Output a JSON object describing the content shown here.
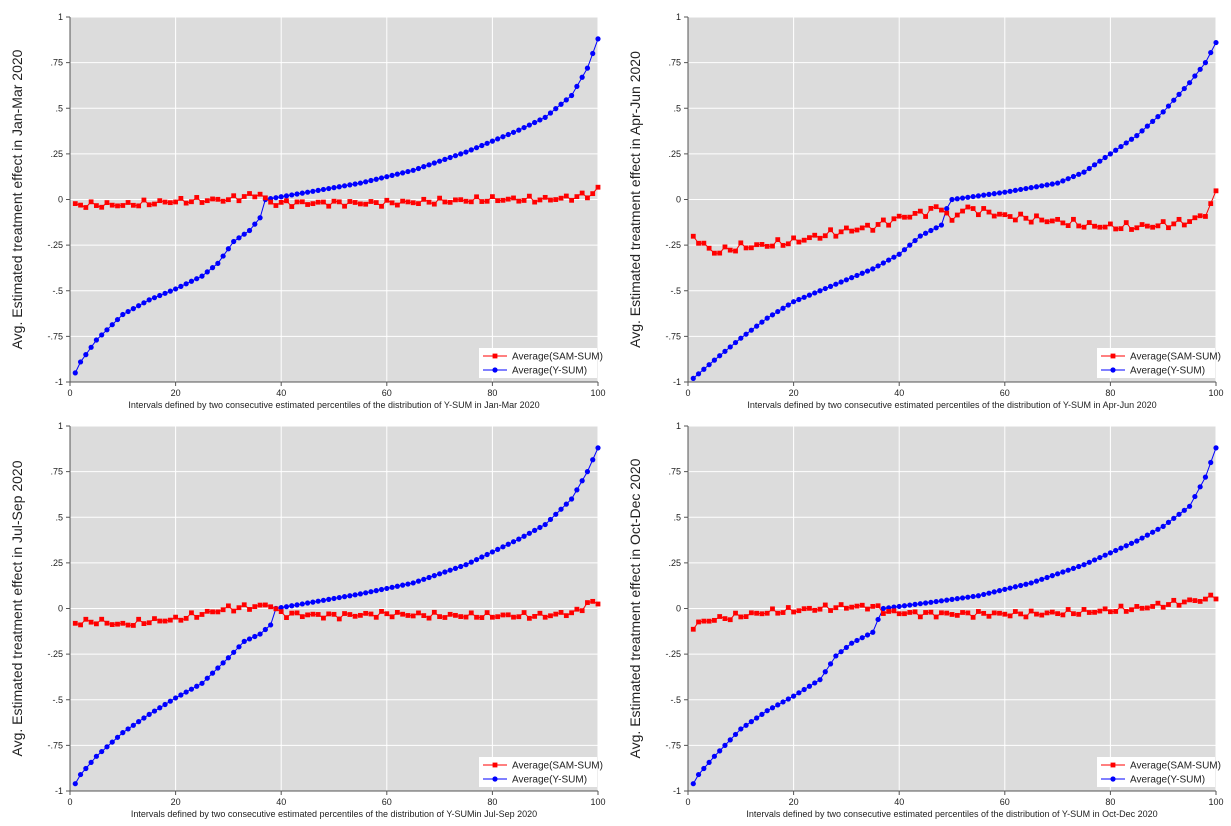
{
  "style": {
    "panel_bg": "#dcdcdc",
    "grid_color": "#ffffff",
    "sam_color": "#ff0000",
    "y_color": "#0000ff",
    "sam_marker": "square",
    "y_marker": "circle"
  },
  "chart_data": [
    {
      "type": "line",
      "ylabel": "Avg. Estimated treatment effect in Jan-Mar 2020",
      "xlabel": "Intervals defined by two consecutive estimated percentiles of the distribution of Y-SUM in Jan-Mar 2020",
      "xlim": [
        0,
        100
      ],
      "ylim": [
        -1,
        1
      ],
      "xticks": [
        "0",
        "20",
        "40",
        "60",
        "80",
        "100"
      ],
      "yticks": [
        "-1",
        "-.75",
        "-.5",
        "-.25",
        "0",
        ".25",
        ".5",
        ".75",
        "1"
      ],
      "grid": true,
      "legend_position": "bottom-right",
      "legend": [
        "Average(SAM-SUM)",
        "Average(Y-SUM)"
      ],
      "crossover": 37,
      "y_sum": {
        "neg_anchors": [
          [
            1,
            -0.95
          ],
          [
            2,
            -0.89
          ],
          [
            5,
            -0.77
          ],
          [
            10,
            -0.63
          ],
          [
            15,
            -0.55
          ],
          [
            20,
            -0.49
          ],
          [
            25,
            -0.42
          ],
          [
            28,
            -0.35
          ],
          [
            31,
            -0.23
          ],
          [
            34,
            -0.17
          ],
          [
            36,
            -0.1
          ]
        ],
        "pos_anchors": [
          [
            37,
            0.0
          ],
          [
            45,
            0.04
          ],
          [
            55,
            0.09
          ],
          [
            65,
            0.16
          ],
          [
            75,
            0.26
          ],
          [
            85,
            0.38
          ],
          [
            90,
            0.45
          ],
          [
            95,
            0.57
          ],
          [
            98,
            0.72
          ],
          [
            100,
            0.88
          ]
        ]
      },
      "sam_sum": {
        "anchors": [
          [
            1,
            -0.03
          ],
          [
            10,
            -0.03
          ],
          [
            20,
            -0.01
          ],
          [
            30,
            0.0
          ],
          [
            36,
            0.03
          ],
          [
            38,
            -0.02
          ],
          [
            50,
            -0.02
          ],
          [
            60,
            -0.02
          ],
          [
            70,
            -0.01
          ],
          [
            80,
            0.0
          ],
          [
            90,
            0.0
          ],
          [
            95,
            0.01
          ],
          [
            99,
            0.03
          ],
          [
            100,
            0.06
          ]
        ],
        "amp": 0.012
      }
    },
    {
      "type": "line",
      "ylabel": "Avg. Estimated treatment effect in Apr-Jun 2020",
      "xlabel": "Intervals defined by two consecutive estimated percentiles of the distribution of Y-SUM in Apr-Jun 2020",
      "xlim": [
        0,
        100
      ],
      "ylim": [
        -1,
        1
      ],
      "xticks": [
        "0",
        "20",
        "40",
        "60",
        "80",
        "100"
      ],
      "yticks": [
        "-1",
        "-.75",
        "-.5",
        "-.25",
        "0",
        ".25",
        ".5",
        ".75",
        "1"
      ],
      "grid": true,
      "legend_position": "bottom-right",
      "legend": [
        "Average(SAM-SUM)",
        "Average(Y-SUM)"
      ],
      "crossover": 50,
      "y_sum": {
        "neg_anchors": [
          [
            1,
            -0.98
          ],
          [
            5,
            -0.88
          ],
          [
            10,
            -0.76
          ],
          [
            15,
            -0.65
          ],
          [
            20,
            -0.56
          ],
          [
            25,
            -0.5
          ],
          [
            30,
            -0.44
          ],
          [
            35,
            -0.38
          ],
          [
            40,
            -0.3
          ],
          [
            44,
            -0.2
          ],
          [
            48,
            -0.14
          ],
          [
            49,
            -0.05
          ]
        ],
        "pos_anchors": [
          [
            50,
            0.0
          ],
          [
            60,
            0.04
          ],
          [
            70,
            0.09
          ],
          [
            75,
            0.15
          ],
          [
            80,
            0.25
          ],
          [
            85,
            0.35
          ],
          [
            90,
            0.48
          ],
          [
            95,
            0.64
          ],
          [
            98,
            0.75
          ],
          [
            100,
            0.86
          ]
        ]
      },
      "sam_sum": {
        "anchors": [
          [
            1,
            -0.2
          ],
          [
            3,
            -0.25
          ],
          [
            5,
            -0.29
          ],
          [
            10,
            -0.26
          ],
          [
            15,
            -0.25
          ],
          [
            20,
            -0.23
          ],
          [
            25,
            -0.2
          ],
          [
            30,
            -0.17
          ],
          [
            35,
            -0.15
          ],
          [
            40,
            -0.1
          ],
          [
            45,
            -0.07
          ],
          [
            48,
            -0.04
          ],
          [
            50,
            -0.12
          ],
          [
            52,
            -0.05
          ],
          [
            55,
            -0.06
          ],
          [
            60,
            -0.09
          ],
          [
            70,
            -0.12
          ],
          [
            75,
            -0.14
          ],
          [
            80,
            -0.15
          ],
          [
            85,
            -0.15
          ],
          [
            90,
            -0.14
          ],
          [
            95,
            -0.12
          ],
          [
            98,
            -0.08
          ],
          [
            100,
            0.03
          ]
        ],
        "amp": 0.015
      }
    },
    {
      "type": "line",
      "ylabel": "Avg. Estimated treatment effect in Jul-Sep 2020",
      "xlabel": "Intervals defined by two consecutive estimated percentiles of the distribution of Y-SUMin Jul-Sep 2020",
      "xlim": [
        0,
        100
      ],
      "ylim": [
        -1,
        1
      ],
      "xticks": [
        "0",
        "20",
        "40",
        "60",
        "80",
        "100"
      ],
      "yticks": [
        "-1",
        "-.75",
        "-.5",
        "-.25",
        "0",
        ".25",
        ".5",
        ".75",
        "1"
      ],
      "grid": true,
      "legend_position": "bottom-right",
      "legend": [
        "Average(SAM-SUM)",
        "Average(Y-SUM)"
      ],
      "crossover": 39,
      "y_sum": {
        "neg_anchors": [
          [
            1,
            -0.96
          ],
          [
            2,
            -0.91
          ],
          [
            5,
            -0.81
          ],
          [
            10,
            -0.68
          ],
          [
            15,
            -0.58
          ],
          [
            20,
            -0.49
          ],
          [
            25,
            -0.41
          ],
          [
            30,
            -0.27
          ],
          [
            33,
            -0.18
          ],
          [
            36,
            -0.14
          ],
          [
            38,
            -0.09
          ]
        ],
        "pos_anchors": [
          [
            39,
            0.0
          ],
          [
            45,
            0.03
          ],
          [
            55,
            0.08
          ],
          [
            65,
            0.14
          ],
          [
            75,
            0.24
          ],
          [
            85,
            0.38
          ],
          [
            90,
            0.46
          ],
          [
            95,
            0.6
          ],
          [
            98,
            0.75
          ],
          [
            100,
            0.88
          ]
        ]
      },
      "sam_sum": {
        "anchors": [
          [
            1,
            -0.08
          ],
          [
            5,
            -0.07
          ],
          [
            10,
            -0.09
          ],
          [
            15,
            -0.07
          ],
          [
            20,
            -0.06
          ],
          [
            25,
            -0.03
          ],
          [
            30,
            0.0
          ],
          [
            35,
            0.01
          ],
          [
            38,
            0.02
          ],
          [
            40,
            -0.03
          ],
          [
            50,
            -0.04
          ],
          [
            60,
            -0.03
          ],
          [
            70,
            -0.04
          ],
          [
            80,
            -0.04
          ],
          [
            90,
            -0.04
          ],
          [
            96,
            -0.02
          ],
          [
            98,
            0.03
          ],
          [
            100,
            0.03
          ]
        ],
        "amp": 0.012
      }
    },
    {
      "type": "line",
      "ylabel": "Avg. Estimated treatment effect in Oct-Dec 2020",
      "xlabel": "Intervals defined by two consecutive estimated percentiles of the distribution of Y-SUM in Oct-Dec 2020",
      "xlim": [
        0,
        100
      ],
      "ylim": [
        -1,
        1
      ],
      "xticks": [
        "0",
        "20",
        "40",
        "60",
        "80",
        "100"
      ],
      "yticks": [
        "-1",
        "-.75",
        "-.5",
        "-.25",
        "0",
        ".25",
        ".5",
        ".75",
        "1"
      ],
      "grid": true,
      "legend_position": "bottom-right",
      "legend": [
        "Average(SAM-SUM)",
        "Average(Y-SUM)"
      ],
      "crossover": 37,
      "y_sum": {
        "neg_anchors": [
          [
            1,
            -0.96
          ],
          [
            2,
            -0.91
          ],
          [
            5,
            -0.81
          ],
          [
            10,
            -0.66
          ],
          [
            15,
            -0.56
          ],
          [
            20,
            -0.48
          ],
          [
            25,
            -0.39
          ],
          [
            28,
            -0.26
          ],
          [
            31,
            -0.19
          ],
          [
            35,
            -0.13
          ],
          [
            36,
            -0.06
          ]
        ],
        "pos_anchors": [
          [
            37,
            0.0
          ],
          [
            45,
            0.03
          ],
          [
            55,
            0.07
          ],
          [
            65,
            0.14
          ],
          [
            75,
            0.24
          ],
          [
            85,
            0.37
          ],
          [
            90,
            0.45
          ],
          [
            95,
            0.56
          ],
          [
            98,
            0.72
          ],
          [
            100,
            0.88
          ]
        ]
      },
      "sam_sum": {
        "anchors": [
          [
            1,
            -0.1
          ],
          [
            3,
            -0.07
          ],
          [
            5,
            -0.06
          ],
          [
            10,
            -0.04
          ],
          [
            15,
            -0.02
          ],
          [
            20,
            -0.01
          ],
          [
            25,
            0.0
          ],
          [
            30,
            0.01
          ],
          [
            35,
            0.01
          ],
          [
            38,
            -0.02
          ],
          [
            45,
            -0.03
          ],
          [
            55,
            -0.03
          ],
          [
            65,
            -0.03
          ],
          [
            75,
            -0.02
          ],
          [
            80,
            -0.01
          ],
          [
            85,
            0.0
          ],
          [
            90,
            0.02
          ],
          [
            95,
            0.04
          ],
          [
            98,
            0.05
          ],
          [
            100,
            0.07
          ]
        ],
        "amp": 0.012
      }
    }
  ]
}
